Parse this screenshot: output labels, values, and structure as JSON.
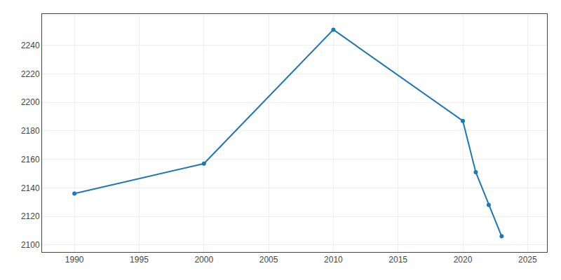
{
  "chart_data": {
    "type": "line",
    "x": [
      1990,
      2000,
      2010,
      2020,
      2021,
      2022,
      2023
    ],
    "values": [
      2136,
      2157,
      2251,
      2187,
      2151,
      2128,
      2106
    ],
    "marker": "circle",
    "xlim": [
      1987.5,
      2026.5
    ],
    "ylim": [
      2095,
      2262
    ],
    "xticks": [
      1990,
      1995,
      2000,
      2005,
      2010,
      2015,
      2020,
      2025
    ],
    "yticks": [
      2100,
      2120,
      2140,
      2160,
      2180,
      2200,
      2220,
      2240
    ],
    "grid": true
  }
}
